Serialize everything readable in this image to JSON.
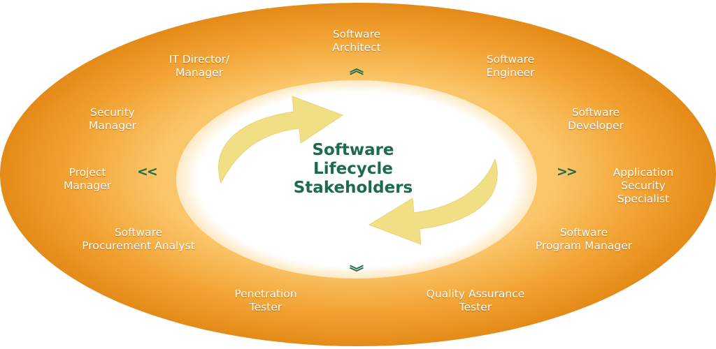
{
  "center": {
    "line1": "Software",
    "line2": "Lifecycle",
    "line3": "Stakeholders"
  },
  "roles": {
    "software_architect": [
      "Software",
      "Architect"
    ],
    "software_engineer": [
      "Software",
      "Engineer"
    ],
    "software_developer": [
      "Software",
      "Developer"
    ],
    "application_security_specialist": [
      "Application",
      "Security",
      "Specialist"
    ],
    "software_program_manager": [
      "Software",
      "Program Manager"
    ],
    "quality_assurance_tester": [
      "Quality Assurance",
      "Tester"
    ],
    "penetration_tester": [
      "Penetration",
      "Tester"
    ],
    "software_procurement_analyst": [
      "Software",
      "Procurement Analyst"
    ],
    "project_manager": [
      "Project",
      "Manager"
    ],
    "security_manager": [
      "Security",
      "Manager"
    ],
    "it_director_manager": [
      "IT Director/",
      "Manager"
    ]
  },
  "chevrons": {
    "up": "︽",
    "down": "︾",
    "left": "<<",
    "right": ">>"
  },
  "colors": {
    "ring_outer": "#e8901c",
    "ring_inner": "#f6b649",
    "center_fill": "#ffffff",
    "arrow_fill": "#f1df86",
    "text_dark_green": "#1c6a4f",
    "role_text": "#ffffff"
  },
  "icons": {
    "cycle_arrow_top": "curved-arrow-right-icon",
    "cycle_arrow_bottom": "curved-arrow-left-icon"
  }
}
